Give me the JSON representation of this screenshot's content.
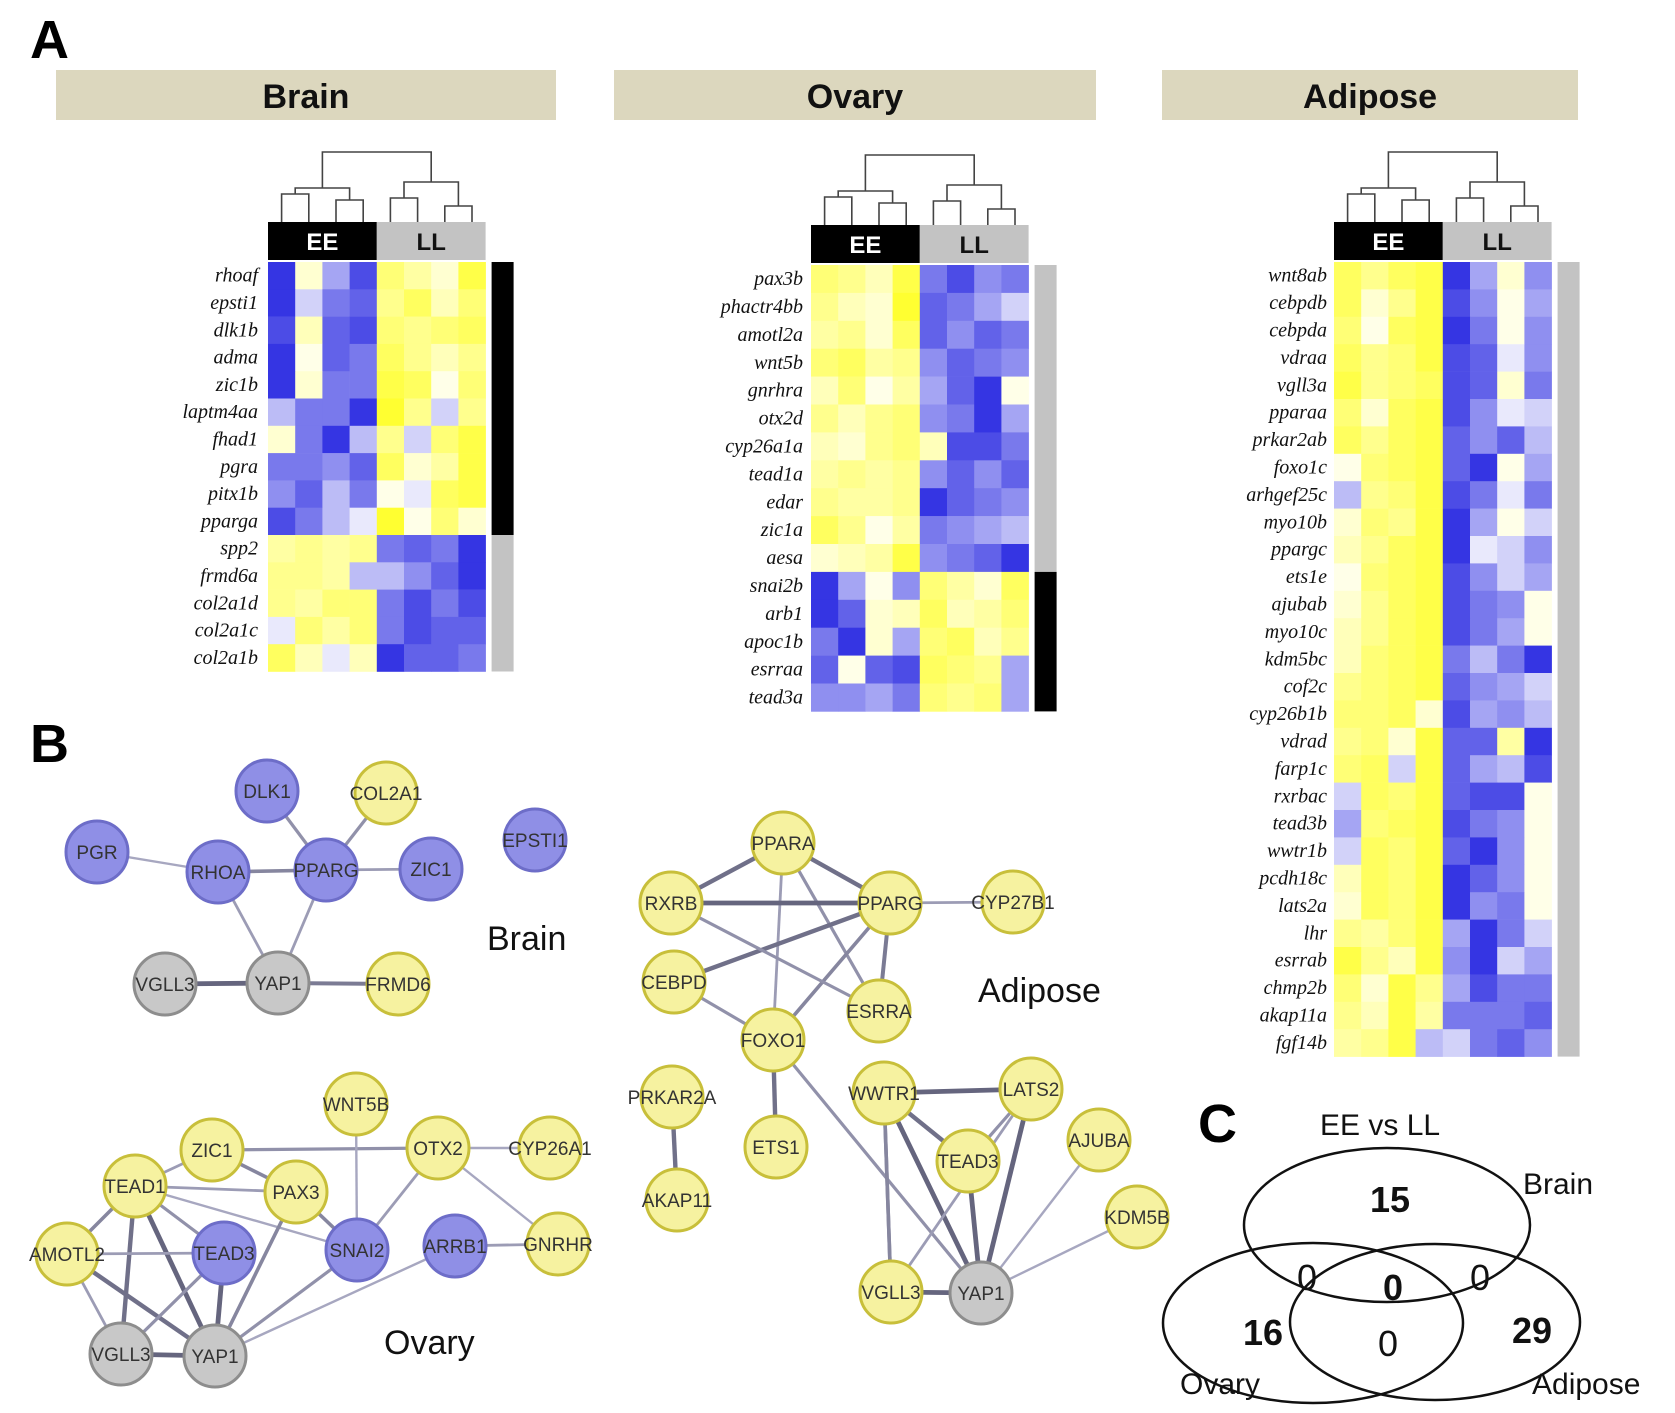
{
  "panels": {
    "a": "A",
    "b": "B",
    "c": "C"
  },
  "colors": {
    "blue": "#1f1fe0",
    "yellow": "#ffff1a",
    "header_fill": "#dcd7be",
    "ee_bar": "#000000",
    "ll_bar": "#c3c3c3",
    "node_yellow": "#f6f2a0",
    "node_blue": "#8f8fe6",
    "node_grey": "#c8c8c8"
  },
  "heatmaps": [
    {
      "tissue": "Brain",
      "ee_label": "EE",
      "ll_label": "LL",
      "genes": [
        "rhoaf",
        "epsti1",
        "dlk1b",
        "adma",
        "zic1b",
        "laptm4aa",
        "fhad1",
        "pgra",
        "pitx1b",
        "pparga",
        "spp2",
        "frmd6a",
        "col2a1d",
        "col2a1c",
        "col2a1b"
      ],
      "blocks": [
        {
          "rows": 10,
          "color": "black"
        },
        {
          "rows": 5,
          "color": "grey"
        }
      ],
      "values": [
        [
          -0.9,
          0.2,
          -0.4,
          -0.8,
          0.6,
          0.4,
          0.2,
          0.8
        ],
        [
          -0.9,
          -0.2,
          -0.6,
          -0.7,
          0.5,
          0.7,
          0.3,
          0.6
        ],
        [
          -0.8,
          0.3,
          -0.7,
          -0.8,
          0.6,
          0.5,
          0.6,
          0.7
        ],
        [
          -0.9,
          0.1,
          -0.7,
          -0.6,
          0.7,
          0.5,
          0.3,
          0.5
        ],
        [
          -0.9,
          0.2,
          -0.6,
          -0.6,
          0.8,
          0.7,
          0.1,
          0.6
        ],
        [
          -0.3,
          -0.6,
          -0.6,
          -0.9,
          0.9,
          0.5,
          -0.2,
          0.5
        ],
        [
          0.2,
          -0.6,
          -0.9,
          -0.3,
          0.5,
          -0.2,
          0.6,
          0.8
        ],
        [
          -0.6,
          -0.6,
          -0.5,
          -0.7,
          0.7,
          0.2,
          0.4,
          0.8
        ],
        [
          -0.5,
          -0.7,
          -0.3,
          -0.6,
          0.1,
          -0.1,
          0.7,
          0.8
        ],
        [
          -0.8,
          -0.6,
          -0.3,
          -0.1,
          0.9,
          0.1,
          0.6,
          0.2
        ],
        [
          0.4,
          0.5,
          0.4,
          0.5,
          -0.6,
          -0.7,
          -0.6,
          -0.9
        ],
        [
          0.5,
          0.5,
          0.4,
          -0.3,
          -0.3,
          -0.5,
          -0.7,
          -0.9
        ],
        [
          0.5,
          0.4,
          0.6,
          0.6,
          -0.6,
          -0.8,
          -0.6,
          -0.8
        ],
        [
          -0.1,
          0.6,
          0.4,
          0.6,
          -0.6,
          -0.8,
          -0.7,
          -0.7
        ],
        [
          0.7,
          0.3,
          -0.1,
          0.3,
          -0.9,
          -0.7,
          -0.7,
          -0.6
        ]
      ]
    },
    {
      "tissue": "Ovary",
      "ee_label": "EE",
      "ll_label": "LL",
      "genes": [
        "pax3b",
        "phactr4bb",
        "amotl2a",
        "wnt5b",
        "gnrhra",
        "otx2d",
        "cyp26a1a",
        "tead1a",
        "edar",
        "zic1a",
        "aesa",
        "snai2b",
        "arb1",
        "apoc1b",
        "esrraa",
        "tead3a"
      ],
      "blocks": [
        {
          "rows": 11,
          "color": "grey"
        },
        {
          "rows": 5,
          "color": "black"
        }
      ],
      "values": [
        [
          0.6,
          0.5,
          0.3,
          0.8,
          -0.6,
          -0.8,
          -0.5,
          -0.6
        ],
        [
          0.5,
          0.3,
          0.2,
          0.9,
          -0.7,
          -0.6,
          -0.4,
          -0.2
        ],
        [
          0.4,
          0.5,
          0.2,
          0.7,
          -0.7,
          -0.5,
          -0.7,
          -0.6
        ],
        [
          0.6,
          0.7,
          0.4,
          0.5,
          -0.5,
          -0.7,
          -0.6,
          -0.5
        ],
        [
          0.3,
          0.6,
          0.1,
          0.4,
          -0.4,
          -0.7,
          -0.9,
          0.1
        ],
        [
          0.5,
          0.3,
          0.5,
          0.6,
          -0.5,
          -0.6,
          -0.9,
          -0.4
        ],
        [
          0.3,
          0.2,
          0.5,
          0.6,
          0.3,
          -0.8,
          -0.8,
          -0.6
        ],
        [
          0.4,
          0.5,
          0.4,
          0.5,
          -0.5,
          -0.7,
          -0.5,
          -0.7
        ],
        [
          0.5,
          0.4,
          0.4,
          0.5,
          -0.9,
          -0.7,
          -0.6,
          -0.5
        ],
        [
          0.7,
          0.5,
          0.1,
          0.4,
          -0.6,
          -0.5,
          -0.4,
          -0.3
        ],
        [
          0.2,
          0.3,
          0.4,
          0.8,
          -0.5,
          -0.6,
          -0.7,
          -0.9
        ],
        [
          -0.9,
          -0.4,
          0.1,
          -0.5,
          0.6,
          0.4,
          0.2,
          0.7
        ],
        [
          -0.9,
          -0.7,
          0.2,
          0.3,
          0.7,
          0.3,
          0.4,
          0.6
        ],
        [
          -0.6,
          -0.9,
          0.2,
          -0.4,
          0.6,
          0.7,
          0.3,
          0.5
        ],
        [
          -0.7,
          0.1,
          -0.7,
          -0.8,
          0.7,
          0.6,
          0.5,
          -0.4
        ],
        [
          -0.5,
          -0.5,
          -0.4,
          -0.6,
          0.6,
          0.5,
          0.6,
          -0.4
        ]
      ]
    },
    {
      "tissue": "Adipose",
      "ee_label": "EE",
      "ll_label": "LL",
      "genes": [
        "wnt8ab",
        "cebpdb",
        "cebpda",
        "vdraa",
        "vgll3a",
        "pparaa",
        "prkar2ab",
        "foxo1c",
        "arhgef25c",
        "myo10b",
        "ppargc",
        "ets1e",
        "ajubab",
        "myo10c",
        "kdm5bc",
        "cof2c",
        "cyp26b1b",
        "vdrad",
        "farp1c",
        "rxrbac",
        "tead3b",
        "wwtr1b",
        "pcdh18c",
        "lats2a",
        "lhr",
        "esrrab",
        "chmp2b",
        "akap11a",
        "fgf14b"
      ],
      "blocks": [
        {
          "rows": 29,
          "color": "grey"
        }
      ],
      "values": [
        [
          0.7,
          0.5,
          0.7,
          0.8,
          -0.9,
          -0.4,
          0.2,
          -0.5
        ],
        [
          0.7,
          0.2,
          0.5,
          0.8,
          -0.8,
          -0.5,
          0.1,
          -0.4
        ],
        [
          0.6,
          0.1,
          0.7,
          0.8,
          -0.9,
          -0.6,
          0.1,
          -0.5
        ],
        [
          0.7,
          0.5,
          0.6,
          0.8,
          -0.8,
          -0.7,
          -0.1,
          -0.5
        ],
        [
          0.8,
          0.5,
          0.6,
          0.7,
          -0.8,
          -0.7,
          0.2,
          -0.6
        ],
        [
          0.6,
          0.2,
          0.7,
          0.8,
          -0.8,
          -0.5,
          -0.1,
          -0.2
        ],
        [
          0.7,
          0.5,
          0.7,
          0.8,
          -0.7,
          -0.5,
          -0.7,
          -0.3
        ],
        [
          0.1,
          0.6,
          0.7,
          0.8,
          -0.7,
          -0.9,
          0.1,
          -0.4
        ],
        [
          -0.3,
          0.5,
          0.6,
          0.8,
          -0.8,
          -0.6,
          -0.1,
          -0.6
        ],
        [
          0.2,
          0.6,
          0.5,
          0.8,
          -0.9,
          -0.4,
          0.1,
          -0.2
        ],
        [
          0.3,
          0.5,
          0.7,
          0.8,
          -0.9,
          -0.1,
          -0.2,
          -0.5
        ],
        [
          0.1,
          0.6,
          0.7,
          0.8,
          -0.8,
          -0.5,
          -0.2,
          -0.4
        ],
        [
          0.2,
          0.5,
          0.7,
          0.8,
          -0.8,
          -0.6,
          -0.5,
          0.1
        ],
        [
          0.3,
          0.5,
          0.7,
          0.8,
          -0.8,
          -0.6,
          -0.4,
          0.1
        ],
        [
          0.3,
          0.6,
          0.7,
          0.8,
          -0.6,
          -0.3,
          -0.6,
          -0.9
        ],
        [
          0.5,
          0.6,
          0.7,
          0.8,
          -0.7,
          -0.5,
          -0.4,
          -0.2
        ],
        [
          0.6,
          0.6,
          0.7,
          0.2,
          -0.8,
          -0.4,
          -0.5,
          -0.3
        ],
        [
          0.5,
          0.6,
          0.2,
          0.8,
          -0.7,
          -0.7,
          0.4,
          -0.9
        ],
        [
          0.6,
          0.7,
          -0.2,
          0.8,
          -0.7,
          -0.4,
          -0.3,
          -0.8
        ],
        [
          -0.2,
          0.7,
          0.6,
          0.8,
          -0.7,
          -0.8,
          -0.8,
          0.1
        ],
        [
          -0.4,
          0.6,
          0.7,
          0.8,
          -0.8,
          -0.6,
          -0.5,
          0.1
        ],
        [
          -0.2,
          0.7,
          0.6,
          0.8,
          -0.7,
          -0.9,
          -0.5,
          0.1
        ],
        [
          0.3,
          0.7,
          0.6,
          0.8,
          -0.9,
          -0.7,
          -0.5,
          0.1
        ],
        [
          0.2,
          0.7,
          0.6,
          0.8,
          -0.9,
          -0.5,
          -0.6,
          0.1
        ],
        [
          0.5,
          0.4,
          0.6,
          0.8,
          -0.4,
          -0.9,
          -0.6,
          -0.2
        ],
        [
          0.8,
          0.5,
          0.3,
          0.8,
          -0.5,
          -0.9,
          -0.2,
          -0.4
        ],
        [
          0.6,
          0.2,
          0.8,
          0.5,
          -0.4,
          -0.8,
          -0.6,
          -0.6
        ],
        [
          0.5,
          0.3,
          0.8,
          0.4,
          -0.6,
          -0.6,
          -0.6,
          -0.7
        ],
        [
          0.4,
          0.5,
          0.8,
          -0.3,
          -0.2,
          -0.6,
          -0.7,
          -0.5
        ]
      ]
    }
  ],
  "networks": [
    {
      "title": "Brain",
      "nodes": [
        {
          "id": "DLK1",
          "label": "DLK1",
          "color": "blue"
        },
        {
          "id": "COL2A1",
          "label": "COL2A1",
          "color": "yellow"
        },
        {
          "id": "PGR",
          "label": "PGR",
          "color": "blue"
        },
        {
          "id": "RHOA",
          "label": "RHOA",
          "color": "blue"
        },
        {
          "id": "PPARG",
          "label": "PPARG",
          "color": "blue"
        },
        {
          "id": "ZIC1",
          "label": "ZIC1",
          "color": "blue"
        },
        {
          "id": "EPSTI1",
          "label": "EPSTI1",
          "color": "blue"
        },
        {
          "id": "VGLL3",
          "label": "VGLL3",
          "color": "grey"
        },
        {
          "id": "YAP1",
          "label": "YAP1",
          "color": "grey"
        },
        {
          "id": "FRMD6",
          "label": "FRMD6",
          "color": "yellow"
        }
      ],
      "edges": [
        [
          "DLK1",
          "PPARG",
          0.5
        ],
        [
          "COL2A1",
          "PPARG",
          0.5
        ],
        [
          "PGR",
          "RHOA",
          0.3
        ],
        [
          "RHOA",
          "PPARG",
          0.6
        ],
        [
          "PPARG",
          "ZIC1",
          0.4
        ],
        [
          "RHOA",
          "YAP1",
          0.4
        ],
        [
          "PPARG",
          "YAP1",
          0.4
        ],
        [
          "VGLL3",
          "YAP1",
          0.9
        ],
        [
          "YAP1",
          "FRMD6",
          0.7
        ]
      ]
    },
    {
      "title": "Ovary",
      "nodes": [
        {
          "id": "WNT5B",
          "label": "WNT5B",
          "color": "yellow"
        },
        {
          "id": "ZIC1",
          "label": "ZIC1",
          "color": "yellow"
        },
        {
          "id": "OTX2",
          "label": "OTX2",
          "color": "yellow"
        },
        {
          "id": "CYP26A1",
          "label": "CYP26A1",
          "color": "yellow"
        },
        {
          "id": "TEAD1",
          "label": "TEAD1",
          "color": "yellow"
        },
        {
          "id": "PAX3",
          "label": "PAX3",
          "color": "yellow"
        },
        {
          "id": "AMOTL2",
          "label": "AMOTL2",
          "color": "yellow"
        },
        {
          "id": "TEAD3",
          "label": "TEAD3",
          "color": "blue"
        },
        {
          "id": "SNAI2",
          "label": "SNAI2",
          "color": "blue"
        },
        {
          "id": "ARRB1",
          "label": "ARRB1",
          "color": "blue"
        },
        {
          "id": "GNRHR",
          "label": "GNRHR",
          "color": "yellow"
        },
        {
          "id": "VGLL3",
          "label": "VGLL3",
          "color": "grey"
        },
        {
          "id": "YAP1",
          "label": "YAP1",
          "color": "grey"
        }
      ],
      "edges": [
        [
          "ZIC1",
          "OTX2",
          0.5
        ],
        [
          "ZIC1",
          "PAX3",
          0.6
        ],
        [
          "TEAD1",
          "ZIC1",
          0.4
        ],
        [
          "TEAD1",
          "PAX3",
          0.4
        ],
        [
          "TEAD1",
          "TEAD3",
          0.5
        ],
        [
          "TEAD1",
          "SNAI2",
          0.3
        ],
        [
          "TEAD1",
          "AMOTL2",
          0.6
        ],
        [
          "TEAD1",
          "VGLL3",
          0.8
        ],
        [
          "TEAD1",
          "YAP1",
          0.9
        ],
        [
          "PAX3",
          "SNAI2",
          0.6
        ],
        [
          "PAX3",
          "YAP1",
          0.6
        ],
        [
          "WNT5B",
          "SNAI2",
          0.3
        ],
        [
          "OTX2",
          "SNAI2",
          0.4
        ],
        [
          "OTX2",
          "GNRHR",
          0.3
        ],
        [
          "CYP26A1",
          "OTX2",
          0.3
        ],
        [
          "ARRB1",
          "GNRHR",
          0.4
        ],
        [
          "ARRB1",
          "YAP1",
          0.3
        ],
        [
          "AMOTL2",
          "YAP1",
          0.8
        ],
        [
          "AMOTL2",
          "VGLL3",
          0.4
        ],
        [
          "TEAD3",
          "YAP1",
          0.9
        ],
        [
          "TEAD3",
          "VGLL3",
          0.5
        ],
        [
          "VGLL3",
          "YAP1",
          0.9
        ],
        [
          "SNAI2",
          "YAP1",
          0.5
        ],
        [
          "AMOTL2",
          "TEAD3",
          0.4
        ]
      ]
    },
    {
      "title": "Adipose",
      "nodes": [
        {
          "id": "PPARA",
          "label": "PPARA",
          "color": "yellow"
        },
        {
          "id": "RXRB",
          "label": "RXRB",
          "color": "yellow"
        },
        {
          "id": "PPARG",
          "label": "PPARG",
          "color": "yellow"
        },
        {
          "id": "CYP27B1",
          "label": "CYP27B1",
          "color": "yellow"
        },
        {
          "id": "CEBPD",
          "label": "CEBPD",
          "color": "yellow"
        },
        {
          "id": "ESRRA",
          "label": "ESRRA",
          "color": "yellow"
        },
        {
          "id": "FOXO1",
          "label": "FOXO1",
          "color": "yellow"
        },
        {
          "id": "PRKAR2A",
          "label": "PRKAR2A",
          "color": "yellow"
        },
        {
          "id": "ETS1",
          "label": "ETS1",
          "color": "yellow"
        },
        {
          "id": "AKAP11",
          "label": "AKAP11",
          "color": "yellow"
        },
        {
          "id": "WWTR1",
          "label": "WWTR1",
          "color": "yellow"
        },
        {
          "id": "LATS2",
          "label": "LATS2",
          "color": "yellow"
        },
        {
          "id": "TEAD3",
          "label": "TEAD3",
          "color": "yellow"
        },
        {
          "id": "AJUBA",
          "label": "AJUBA",
          "color": "yellow"
        },
        {
          "id": "KDM5B",
          "label": "KDM5B",
          "color": "yellow"
        },
        {
          "id": "VGLL3",
          "label": "VGLL3",
          "color": "yellow"
        },
        {
          "id": "YAP1",
          "label": "YAP1",
          "color": "grey"
        }
      ],
      "edges": [
        [
          "PPARA",
          "RXRB",
          0.8
        ],
        [
          "PPARA",
          "PPARG",
          0.8
        ],
        [
          "PPARA",
          "FOXO1",
          0.4
        ],
        [
          "PPARA",
          "ESRRA",
          0.5
        ],
        [
          "RXRB",
          "PPARG",
          0.9
        ],
        [
          "PPARG",
          "CYP27B1",
          0.4
        ],
        [
          "PPARG",
          "CEBPD",
          0.8
        ],
        [
          "PPARG",
          "ESRRA",
          0.7
        ],
        [
          "PPARG",
          "FOXO1",
          0.6
        ],
        [
          "RXRB",
          "ESRRA",
          0.5
        ],
        [
          "CEBPD",
          "FOXO1",
          0.5
        ],
        [
          "FOXO1",
          "ETS1",
          0.8
        ],
        [
          "FOXO1",
          "YAP1",
          0.5
        ],
        [
          "PRKAR2A",
          "AKAP11",
          0.8
        ],
        [
          "WWTR1",
          "LATS2",
          0.9
        ],
        [
          "WWTR1",
          "TEAD3",
          0.8
        ],
        [
          "WWTR1",
          "YAP1",
          0.9
        ],
        [
          "WWTR1",
          "VGLL3",
          0.6
        ],
        [
          "LATS2",
          "TEAD3",
          0.5
        ],
        [
          "LATS2",
          "YAP1",
          0.9
        ],
        [
          "LATS2",
          "VGLL3",
          0.4
        ],
        [
          "TEAD3",
          "YAP1",
          0.9
        ],
        [
          "AJUBA",
          "YAP1",
          0.3
        ],
        [
          "KDM5B",
          "YAP1",
          0.3
        ],
        [
          "VGLL3",
          "YAP1",
          0.9
        ],
        [
          "WWTR1",
          "VGLL3",
          0.6
        ]
      ]
    }
  ],
  "venn": {
    "title": "EE vs LL",
    "sets": [
      "Brain",
      "Ovary",
      "Adipose"
    ],
    "brain_only": "15",
    "ovary_only": "16",
    "adipose_only": "29",
    "brain_ovary": "0",
    "brain_adipose": "0",
    "ovary_adipose": "0",
    "all": "0"
  }
}
